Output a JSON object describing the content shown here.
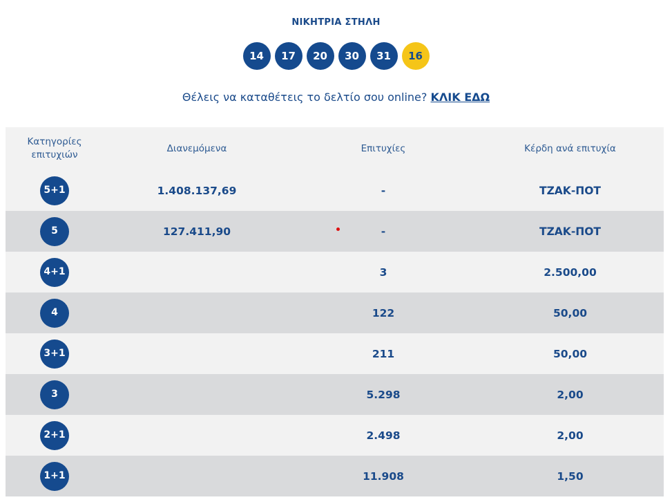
{
  "heading": "ΝΙΚΗΤΡΙΑ ΣΤΗΛΗ",
  "numbers": [
    "14",
    "17",
    "20",
    "30",
    "31"
  ],
  "joker": "16",
  "cta": {
    "text": "Θέλεις να καταθέτεις το δελτίο σου online?",
    "link": "ΚΛΙΚ ΕΔΩ"
  },
  "table": {
    "headers": {
      "category": "Κατηγορίες επιτυχιών",
      "distributed": "Διανεμόμενα",
      "winners": "Επιτυχίες",
      "prize": "Κέρδη ανά επιτυχία"
    },
    "rows": [
      {
        "category": "5+1",
        "distributed": "1.408.137,69",
        "winners": "-",
        "prize": "ΤΖΑΚ-ΠΟΤ"
      },
      {
        "category": "5",
        "distributed": "127.411,90",
        "winners": "-",
        "prize": "ΤΖΑΚ-ΠΟΤ"
      },
      {
        "category": "4+1",
        "distributed": "",
        "winners": "3",
        "prize": "2.500,00"
      },
      {
        "category": "4",
        "distributed": "",
        "winners": "122",
        "prize": "50,00"
      },
      {
        "category": "3+1",
        "distributed": "",
        "winners": "211",
        "prize": "50,00"
      },
      {
        "category": "3",
        "distributed": "",
        "winners": "5.298",
        "prize": "2,00"
      },
      {
        "category": "2+1",
        "distributed": "",
        "winners": "2.498",
        "prize": "2,00"
      },
      {
        "category": "1+1",
        "distributed": "",
        "winners": "11.908",
        "prize": "1,50"
      }
    ]
  },
  "colors": {
    "primary": "#154a8e",
    "joker": "#f5c518",
    "row_light": "#f2f2f2",
    "row_dark": "#d9dadc"
  }
}
